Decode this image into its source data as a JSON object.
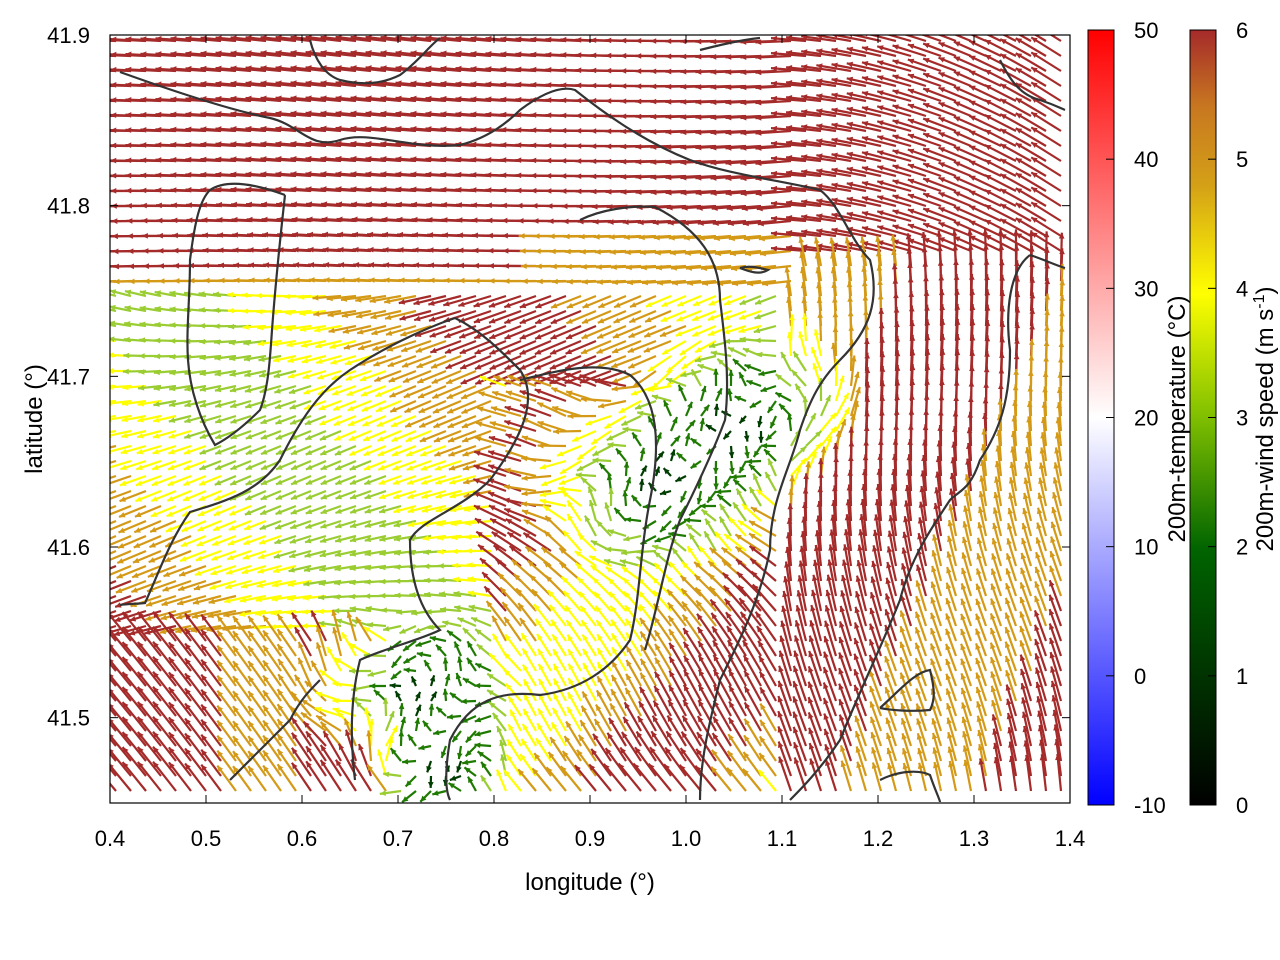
{
  "chart_data": {
    "type": "vector-field",
    "xlabel": "longitude (°)",
    "ylabel": "latitude (°)",
    "xlim": [
      0.4,
      1.4
    ],
    "ylim": [
      41.45,
      41.9
    ],
    "xticks": [
      "0.4",
      "0.5",
      "0.6",
      "0.7",
      "0.8",
      "0.9",
      "1.0",
      "1.1",
      "1.2",
      "1.3",
      "1.4"
    ],
    "yticks": [
      "41.5",
      "41.6",
      "41.7",
      "41.8",
      "41.9"
    ],
    "colorbars": [
      {
        "label": "200m-temperature (°C)",
        "range": [
          -10,
          50
        ],
        "ticks": [
          "-10",
          "0",
          "10",
          "20",
          "30",
          "40",
          "50"
        ],
        "colors": [
          "#0000ff",
          "#ffffff",
          "#ff0000"
        ]
      },
      {
        "label_main": "200m-wind speed (m s",
        "label_sup": "-1",
        "label_close": ")",
        "range": [
          0,
          6
        ],
        "ticks": [
          "0",
          "1",
          "2",
          "3",
          "4",
          "5",
          "6"
        ],
        "colors": [
          "#000000",
          "#006400",
          "#7fbf00",
          "#ffff00",
          "#d4a017",
          "#c87820",
          "#a52a2a"
        ]
      }
    ],
    "coastline_color": "#333333",
    "arrow_palette": {
      "calm": "#003d00",
      "low": "#1e7a00",
      "mid": "#9acd32",
      "moderate": "#ffff00",
      "strong": "#d49a17",
      "very_strong": "#a52a2a"
    },
    "grid": false
  }
}
